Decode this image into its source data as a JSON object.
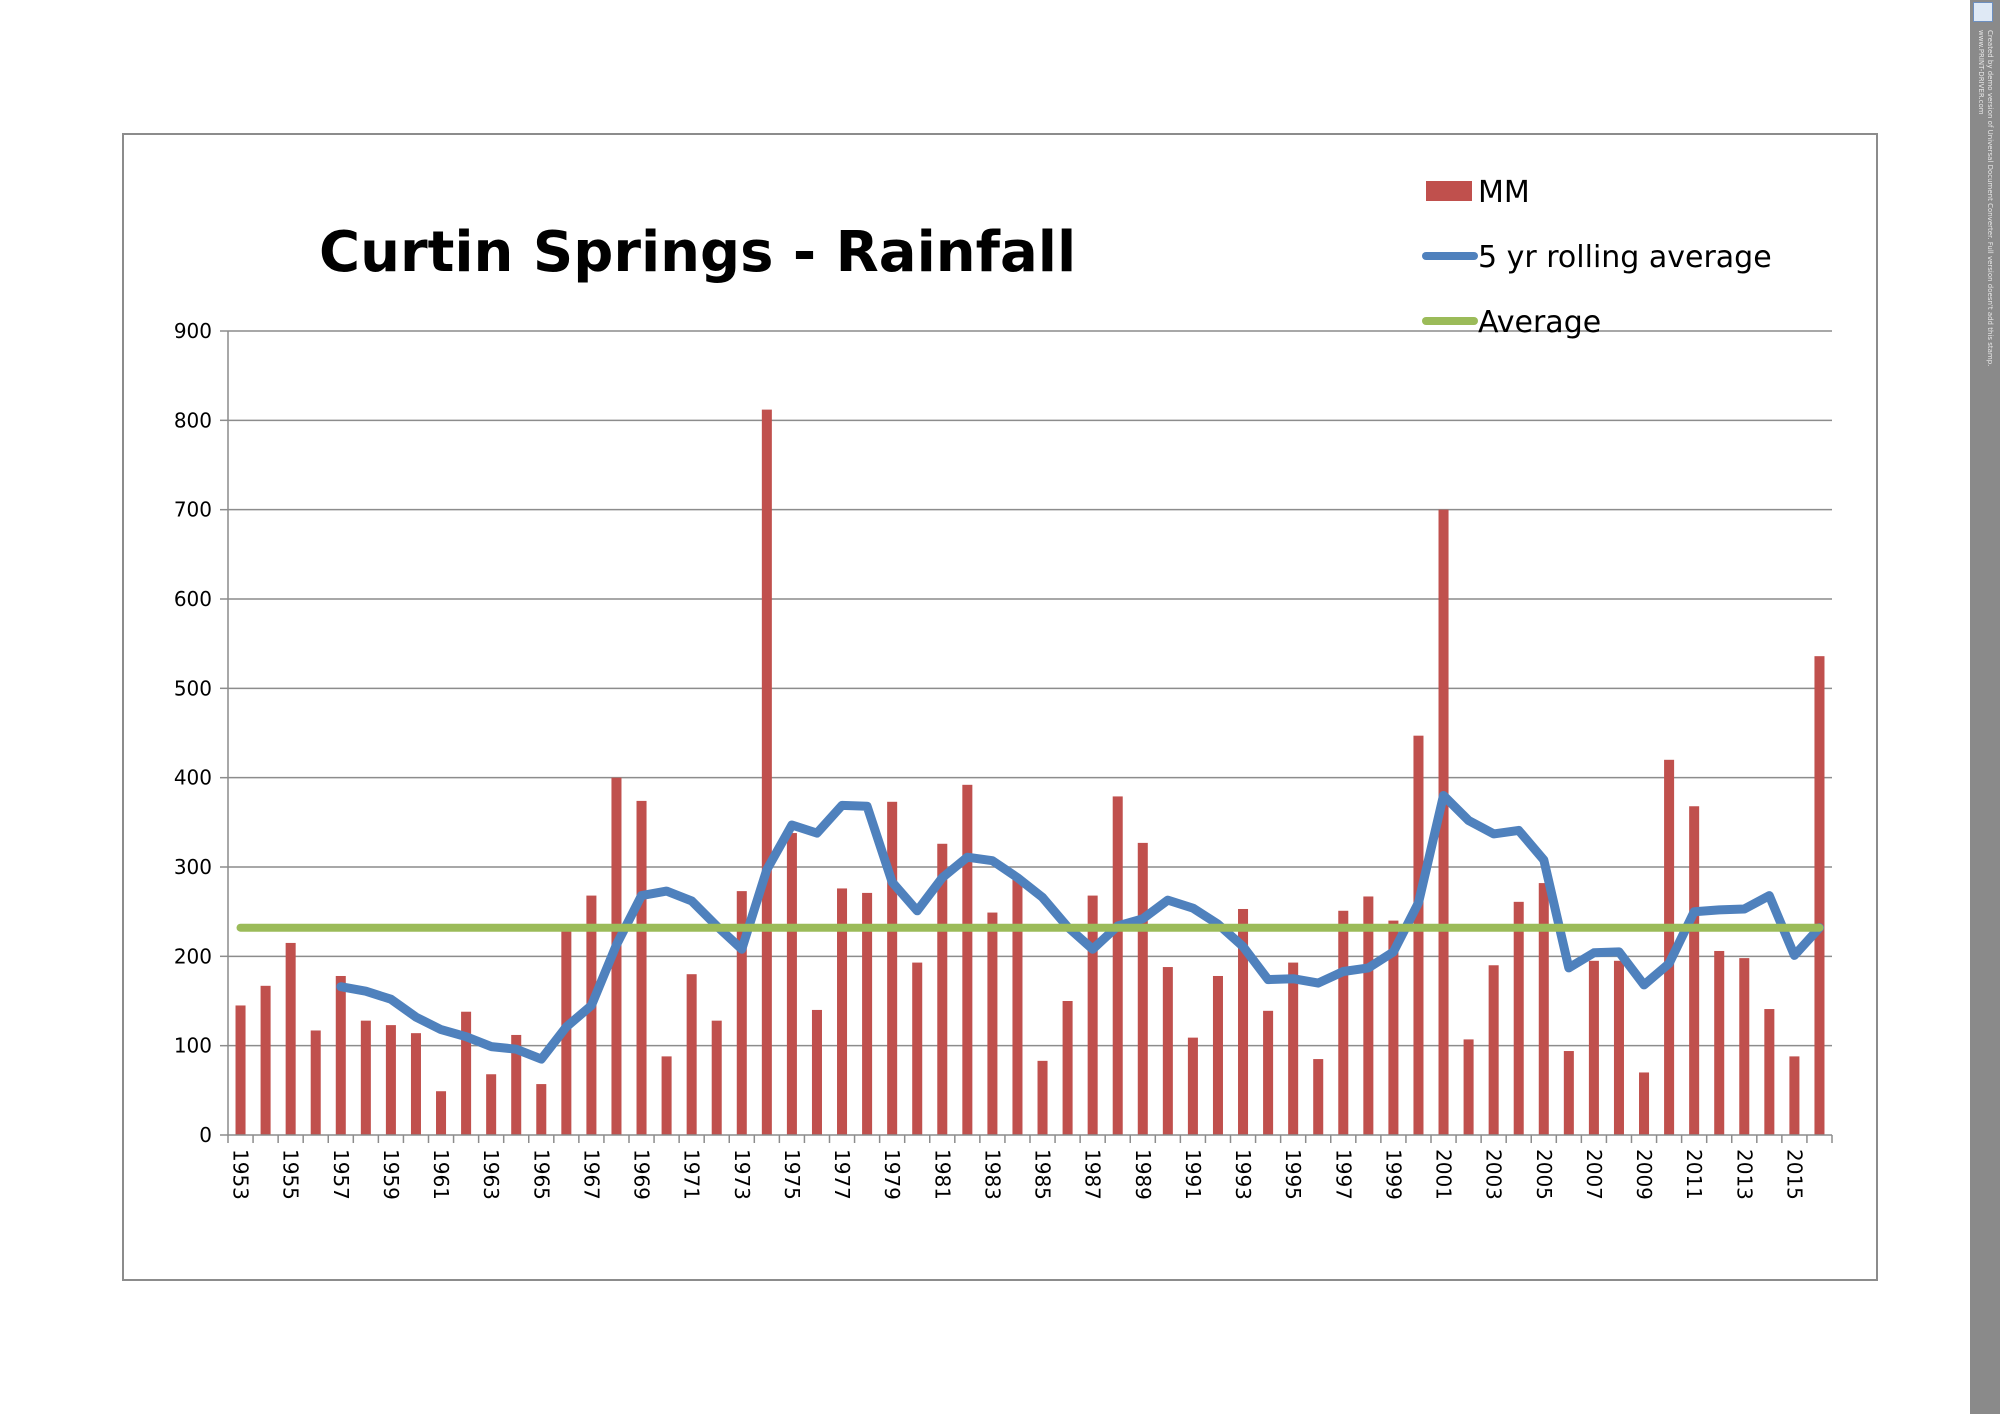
{
  "chart_data": {
    "type": "bar",
    "title": "Curtin Springs - Rainfall",
    "xlabel": "",
    "ylabel": "",
    "ylim": [
      0,
      900
    ],
    "yticks": [
      0,
      100,
      200,
      300,
      400,
      500,
      600,
      700,
      800,
      900
    ],
    "grid": true,
    "legend_position": "top-right",
    "x": [
      1953,
      1954,
      1955,
      1956,
      1957,
      1958,
      1959,
      1960,
      1961,
      1962,
      1963,
      1964,
      1965,
      1966,
      1967,
      1968,
      1969,
      1970,
      1971,
      1972,
      1973,
      1974,
      1975,
      1976,
      1977,
      1978,
      1979,
      1980,
      1981,
      1982,
      1983,
      1984,
      1985,
      1986,
      1987,
      1988,
      1989,
      1990,
      1991,
      1992,
      1993,
      1994,
      1995,
      1996,
      1997,
      1998,
      1999,
      2000,
      2001,
      2002,
      2003,
      2004,
      2005,
      2006,
      2007,
      2008,
      2009,
      2010,
      2011,
      2012,
      2013,
      2014,
      2015,
      2016
    ],
    "x_tick_labels": [
      "1953",
      "1955",
      "1957",
      "1959",
      "1961",
      "1963",
      "1965",
      "1967",
      "1969",
      "1971",
      "1973",
      "1975",
      "1977",
      "1979",
      "1981",
      "1983",
      "1985",
      "1987",
      "1989",
      "1991",
      "1993",
      "1995",
      "1997",
      "1999",
      "2001",
      "2003",
      "2005",
      "2007",
      "2009",
      "2011",
      "2013",
      "2015"
    ],
    "series": [
      {
        "name": "MM",
        "kind": "bar",
        "color": "#c0504d",
        "values": [
          145,
          167,
          215,
          117,
          178,
          128,
          123,
          114,
          49,
          138,
          68,
          112,
          57,
          230,
          268,
          400,
          374,
          88,
          180,
          128,
          273,
          812,
          338,
          140,
          276,
          271,
          373,
          193,
          326,
          392,
          249,
          290,
          83,
          150,
          268,
          379,
          327,
          188,
          109,
          178,
          253,
          139,
          193,
          85,
          251,
          267,
          240,
          447,
          700,
          107,
          190,
          261,
          282,
          94,
          195,
          195,
          70,
          420,
          368,
          206,
          198,
          141,
          88,
          536
        ]
      },
      {
        "name": "5 yr rolling average",
        "kind": "line",
        "color": "#4f81bd",
        "values": [
          null,
          null,
          null,
          null,
          166,
          161,
          152,
          132,
          118,
          110,
          99,
          96,
          85,
          121,
          145,
          213,
          268,
          273,
          262,
          234,
          208,
          297,
          347,
          338,
          369,
          368,
          283,
          251,
          288,
          311,
          307,
          288,
          266,
          233,
          208,
          234,
          242,
          263,
          254,
          236,
          211,
          174,
          175,
          170,
          183,
          187,
          205,
          260,
          380,
          352,
          337,
          341,
          308,
          187,
          204,
          205,
          168,
          192,
          250,
          252,
          253,
          268,
          201,
          232
        ]
      },
      {
        "name": "Average",
        "kind": "line",
        "color": "#9bbb59",
        "values": [
          232,
          232,
          232,
          232,
          232,
          232,
          232,
          232,
          232,
          232,
          232,
          232,
          232,
          232,
          232,
          232,
          232,
          232,
          232,
          232,
          232,
          232,
          232,
          232,
          232,
          232,
          232,
          232,
          232,
          232,
          232,
          232,
          232,
          232,
          232,
          232,
          232,
          232,
          232,
          232,
          232,
          232,
          232,
          232,
          232,
          232,
          232,
          232,
          232,
          232,
          232,
          232,
          232,
          232,
          232,
          232,
          232,
          232,
          232,
          232,
          232,
          232,
          232,
          232
        ]
      }
    ]
  },
  "watermark": {
    "line1": "Created by demo version of Universal Document Converter. Full version doesn't add this stamp.",
    "line2": "www.PRINT-DRIVER.com"
  }
}
